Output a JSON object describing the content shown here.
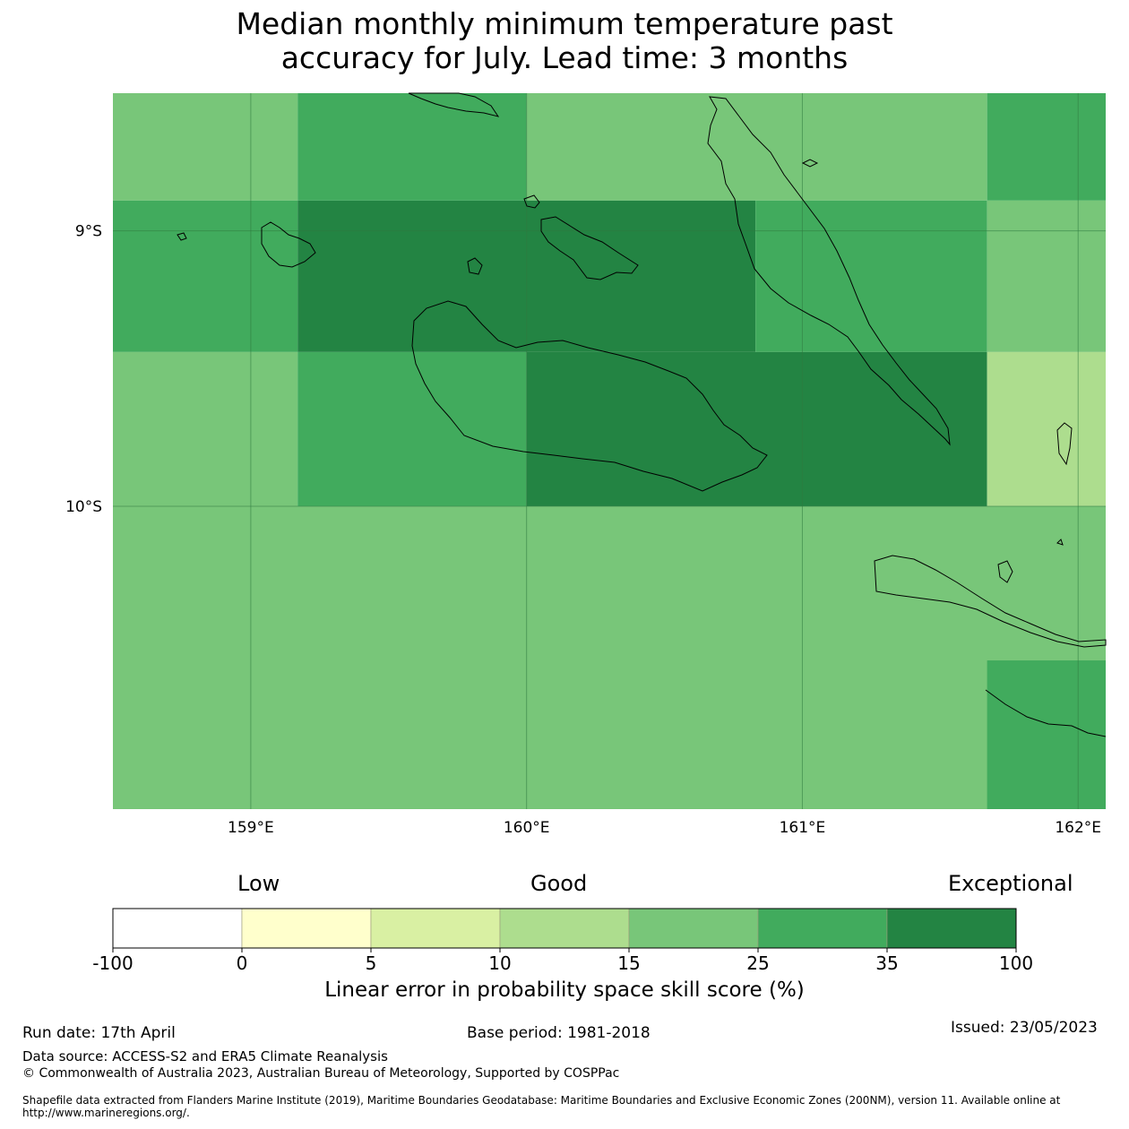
{
  "title": {
    "line1": "Median monthly minimum temperature past",
    "line2": "accuracy for July. Lead time: 3 months"
  },
  "map": {
    "lon_range": [
      158.5,
      162.1
    ],
    "lat_range": [
      -11.1,
      -8.5
    ],
    "lon_ticks": [
      {
        "value": 159,
        "label": "159°E"
      },
      {
        "value": 160,
        "label": "160°E"
      },
      {
        "value": 161,
        "label": "161°E"
      },
      {
        "value": 162,
        "label": "162°E"
      }
    ],
    "lat_ticks": [
      {
        "value": -9,
        "label": "9°S"
      },
      {
        "value": -10,
        "label": "10°S"
      }
    ],
    "cells": [
      {
        "lon": [
          158.5,
          159.17
        ],
        "lat": [
          -8.5,
          -8.89
        ],
        "category": 4
      },
      {
        "lon": [
          159.17,
          160.0
        ],
        "lat": [
          -8.5,
          -8.89
        ],
        "category": 5
      },
      {
        "lon": [
          160.0,
          161.67
        ],
        "lat": [
          -8.5,
          -8.89
        ],
        "category": 4
      },
      {
        "lon": [
          161.67,
          162.1
        ],
        "lat": [
          -8.5,
          -8.89
        ],
        "category": 5
      },
      {
        "lon": [
          158.5,
          159.17
        ],
        "lat": [
          -8.89,
          -9.44
        ],
        "category": 5
      },
      {
        "lon": [
          159.17,
          160.83
        ],
        "lat": [
          -8.89,
          -9.44
        ],
        "category": 6
      },
      {
        "lon": [
          160.83,
          161.67
        ],
        "lat": [
          -8.89,
          -9.44
        ],
        "category": 5
      },
      {
        "lon": [
          161.67,
          162.1
        ],
        "lat": [
          -8.89,
          -9.44
        ],
        "category": 4
      },
      {
        "lon": [
          158.5,
          159.17
        ],
        "lat": [
          -9.44,
          -10.0
        ],
        "category": 4
      },
      {
        "lon": [
          159.17,
          160.0
        ],
        "lat": [
          -9.44,
          -10.0
        ],
        "category": 5
      },
      {
        "lon": [
          160.0,
          161.67
        ],
        "lat": [
          -9.44,
          -10.0
        ],
        "category": 6
      },
      {
        "lon": [
          161.67,
          162.1
        ],
        "lat": [
          -9.44,
          -10.0
        ],
        "category": 3
      },
      {
        "lon": [
          158.5,
          162.1
        ],
        "lat": [
          -10.0,
          -11.1
        ],
        "category": 4
      },
      {
        "lon": [
          161.67,
          162.1
        ],
        "lat": [
          -10.56,
          -11.1
        ],
        "category": 5
      }
    ]
  },
  "legend": {
    "categories": {
      "low": "Low",
      "good": "Good",
      "exceptional": "Exceptional"
    },
    "ticks": [
      "-100",
      "0",
      "5",
      "10",
      "15",
      "25",
      "35",
      "100"
    ],
    "colors": [
      "#ffffff",
      "#ffffcc",
      "#d9f0a3",
      "#addd8e",
      "#78c679",
      "#41ab5d",
      "#238443"
    ],
    "label": "Linear error in probability space skill score (%)"
  },
  "footer": {
    "run_date": "Run date: 17th April",
    "base_period": "Base period: 1981-2018",
    "issued": "Issued: 23/05/2023",
    "data_source": "Data source: ACCESS-S2 and ERA5 Climate Reanalysis",
    "copyright": "© Commonwealth of Australia 2023, Australian Bureau of Meteorology, Supported by COSPPac",
    "shapefile": "Shapefile data extracted from Flanders Marine Institute (2019), Maritime Boundaries Geodatabase: Maritime Boundaries and Exclusive Economic Zones (200NM), version 11. Available online at http://www.marineregions.org/."
  }
}
